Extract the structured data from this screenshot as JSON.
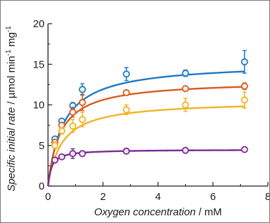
{
  "chart_data": {
    "type": "scatter",
    "xlabel": "Oxygen concentration / mM",
    "xlabel_italic": "Oxygen concentration",
    "xlabel_unit": " / mM",
    "ylabel": "Specific initial rate / µmol min-1 mg-1",
    "ylabel_italic": "Specific initial rate",
    "ylabel_unit": " / µmol min",
    "ylabel_sup1": "-1",
    "ylabel_mid": " mg",
    "ylabel_sup2": "-1",
    "xlim": [
      0,
      8
    ],
    "ylim": [
      0,
      20
    ],
    "xticks": [
      0,
      2,
      4,
      6,
      8
    ],
    "yticks": [
      0,
      5,
      10,
      15,
      20
    ],
    "grid": false,
    "legend": "none",
    "series": [
      {
        "color": "#1f77c4",
        "fit": {
          "vmax": 15.2,
          "km": 0.55
        },
        "points": [
          {
            "x": 0.25,
            "y": 5.8,
            "err": 0.3
          },
          {
            "x": 0.5,
            "y": 8.0,
            "err": 0.3
          },
          {
            "x": 0.9,
            "y": 9.9,
            "err": 0.4
          },
          {
            "x": 1.25,
            "y": 11.9,
            "err": 0.7
          },
          {
            "x": 2.85,
            "y": 13.8,
            "err": 0.8
          },
          {
            "x": 5.0,
            "y": 13.9,
            "err": 0.4
          },
          {
            "x": 7.15,
            "y": 15.3,
            "err": 1.4
          }
        ]
      },
      {
        "color": "#d65a1c",
        "fit": {
          "vmax": 13.0,
          "km": 0.45
        },
        "points": [
          {
            "x": 0.25,
            "y": 5.4,
            "err": 0.3
          },
          {
            "x": 0.5,
            "y": 7.5,
            "err": 0.3
          },
          {
            "x": 0.9,
            "y": 9.1,
            "err": 0.6
          },
          {
            "x": 1.25,
            "y": 10.3,
            "err": 1.0
          },
          {
            "x": 2.85,
            "y": 11.5,
            "err": 0.3
          },
          {
            "x": 5.0,
            "y": 12.0,
            "err": 0.3
          },
          {
            "x": 7.15,
            "y": 12.3,
            "err": 0.4
          }
        ]
      },
      {
        "color": "#f0b323",
        "fit": {
          "vmax": 10.5,
          "km": 0.5
        },
        "points": [
          {
            "x": 0.25,
            "y": 5.0,
            "err": 0.4
          },
          {
            "x": 0.5,
            "y": 6.8,
            "err": 0.4
          },
          {
            "x": 0.9,
            "y": 7.4,
            "err": 0.8
          },
          {
            "x": 1.25,
            "y": 8.2,
            "err": 0.9
          },
          {
            "x": 2.85,
            "y": 9.4,
            "err": 0.6
          },
          {
            "x": 5.0,
            "y": 10.0,
            "err": 0.8
          },
          {
            "x": 7.15,
            "y": 10.6,
            "err": 1.0
          }
        ]
      },
      {
        "color": "#7b2a90",
        "fit": {
          "vmax": 4.5,
          "km": 0.12
        },
        "points": [
          {
            "x": 0.25,
            "y": 3.2,
            "err": 0.2
          },
          {
            "x": 0.5,
            "y": 3.6,
            "err": 0.2
          },
          {
            "x": 0.9,
            "y": 4.0,
            "err": 0.6
          },
          {
            "x": 1.25,
            "y": 4.0,
            "err": 0.3
          },
          {
            "x": 2.85,
            "y": 4.3,
            "err": 0.2
          },
          {
            "x": 5.0,
            "y": 4.4,
            "err": 0.2
          },
          {
            "x": 7.15,
            "y": 4.5,
            "err": 0.2
          }
        ]
      }
    ]
  }
}
